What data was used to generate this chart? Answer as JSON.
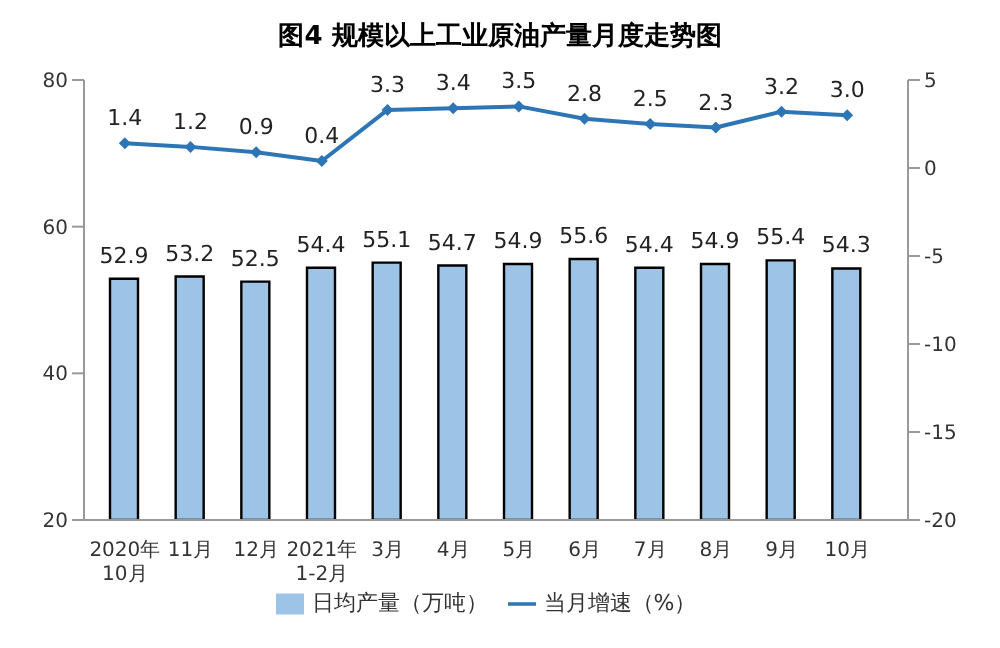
{
  "chart_data": {
    "type": "bar",
    "title": "图4  规模以上工业原油产量月度走势图",
    "categories": [
      "2020年\n10月",
      "11月",
      "12月",
      "2021年\n1-2月",
      "3月",
      "4月",
      "5月",
      "6月",
      "7月",
      "8月",
      "9月",
      "10月"
    ],
    "series": [
      {
        "name": "日均产量（万吨）",
        "color": "#9dc3e6",
        "values": [
          52.9,
          53.2,
          52.5,
          54.4,
          55.1,
          54.7,
          54.9,
          55.6,
          54.4,
          54.9,
          55.4,
          54.3
        ],
        "value_labels": [
          "52.9",
          "53.2",
          "52.5",
          "54.4",
          "55.1",
          "54.7",
          "54.9",
          "55.6",
          "54.4",
          "54.9",
          "55.4",
          "54.3"
        ]
      },
      {
        "name": "当月增速（%）",
        "type": "line",
        "axis": "y2",
        "color": "#2e75b6",
        "values": [
          1.4,
          1.2,
          0.9,
          0.4,
          3.3,
          3.4,
          3.5,
          2.8,
          2.5,
          2.3,
          3.2,
          3.0
        ],
        "value_labels": [
          "1.4",
          "1.2",
          "0.9",
          "0.4",
          "3.3",
          "3.4",
          "3.5",
          "2.8",
          "2.5",
          "2.3",
          "3.2",
          "3.0"
        ]
      }
    ],
    "ylim": [
      20,
      80
    ],
    "yticks": [
      20,
      40,
      60,
      80
    ],
    "y2lim": [
      -20,
      5
    ],
    "y2ticks": [
      -20,
      -15,
      -10,
      -5,
      0,
      5
    ],
    "grid": false,
    "legend": "bottom",
    "marker": "diamond"
  }
}
